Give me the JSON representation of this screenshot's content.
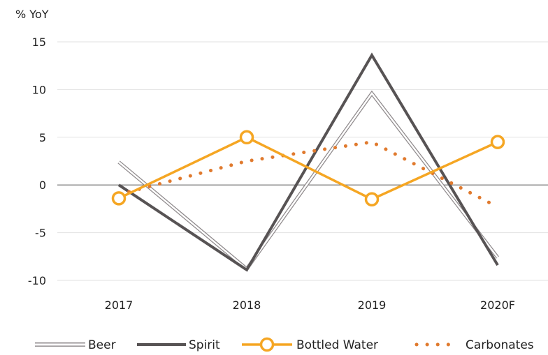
{
  "chart_data": {
    "type": "line",
    "ylabel": "% YoY",
    "categories": [
      "2017",
      "2018",
      "2019",
      "2020F"
    ],
    "y_ticks": [
      15,
      10,
      5,
      0,
      -5,
      -10
    ],
    "ylim": [
      -10,
      15
    ],
    "grid": true,
    "legend_position": "bottom",
    "series": [
      {
        "name": "Beer",
        "values": [
          2.4,
          -8.8,
          9.6,
          -7.6
        ],
        "color": "#d4d0d2",
        "style": "double-line"
      },
      {
        "name": "Spirit",
        "values": [
          0.0,
          -8.9,
          13.6,
          -8.4
        ],
        "color": "#575354",
        "style": "solid"
      },
      {
        "name": "Bottled Water",
        "values": [
          -1.4,
          5.0,
          -1.5,
          4.5
        ],
        "color": "#f5a623",
        "style": "solid-markers"
      },
      {
        "name": "Carbonates",
        "values": [
          -1.0,
          2.5,
          4.5,
          -2.3
        ],
        "color": "#e07a2e",
        "style": "dotted"
      }
    ]
  }
}
